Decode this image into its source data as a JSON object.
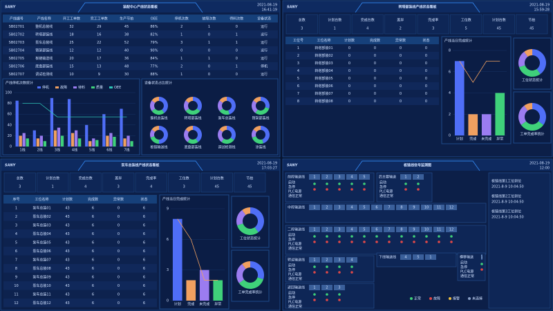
{
  "dashboards": [
    {
      "logo": "SANY",
      "title": "装配中心产线状态看板",
      "date": "2021-08-19",
      "time": "16:41:19",
      "table": {
        "headers": [
          "产线编号",
          "产线名称",
          "开工工单数",
          "完工工单数",
          "生产节拍",
          "OEE",
          "停机次数",
          "故障次数",
          "待料次数",
          "设备状态"
        ],
        "rows": [
          [
            "SB02701",
            "整机总装线",
            32,
            29,
            45,
            "86%",
            2,
            1,
            0,
            "运行"
          ],
          [
            "SB02702",
            "转塔部装线",
            18,
            16,
            38,
            "82%",
            1,
            0,
            1,
            "运行"
          ],
          [
            "SB02703",
            "泵车总装线",
            25,
            22,
            52,
            "79%",
            3,
            1,
            1,
            "运行"
          ],
          [
            "SB02704",
            "臂架部装线",
            12,
            12,
            40,
            "90%",
            0,
            0,
            0,
            "运行"
          ],
          [
            "SB02705",
            "板链输送线",
            20,
            17,
            36,
            "84%",
            1,
            1,
            0,
            "运行"
          ],
          [
            "SB02706",
            "底盘部装线",
            15,
            13,
            48,
            "77%",
            2,
            0,
            1,
            "停机"
          ],
          [
            "SB02707",
            "调试检测线",
            10,
            9,
            30,
            "88%",
            1,
            0,
            0,
            "运行"
          ]
        ]
      },
      "chart": {
        "title": "产线停机次数统计",
        "categories": [
          "1线",
          "2线",
          "3线",
          "4线",
          "5线",
          "6线",
          "7线"
        ],
        "series": [
          {
            "name": "停机",
            "color": "#4f6ef7",
            "values": [
              85,
              30,
              90,
              88,
              40,
              60,
              70
            ]
          },
          {
            "name": "故障",
            "color": "#f0a060",
            "values": [
              20,
              15,
              30,
              25,
              10,
              20,
              15
            ]
          },
          {
            "name": "待料",
            "color": "#9b7cf0",
            "values": [
              25,
              20,
              35,
              30,
              15,
              25,
              20
            ]
          },
          {
            "name": "质量",
            "color": "#3fd17a",
            "values": [
              15,
              10,
              20,
              15,
              12,
              18,
              10
            ]
          }
        ],
        "line": {
          "name": "OEE",
          "color": "#2ec4b6",
          "values": [
            80,
            80,
            55,
            55,
            55,
            55,
            55
          ]
        },
        "ylim": [
          0,
          100
        ],
        "yticks": [
          0,
          20,
          40,
          60,
          80,
          100
        ]
      },
      "donuts_title": "设备状态占比统计",
      "donut_colors": [
        "#4f6ef7",
        "#3fd17a",
        "#9b7cf0",
        "#f0a060"
      ],
      "donuts": [
        {
          "name": "整机总装线",
          "values": [
            40,
            25,
            20,
            15
          ]
        },
        {
          "name": "转塔部装线",
          "values": [
            35,
            30,
            20,
            15
          ]
        },
        {
          "name": "泵车总装线",
          "values": [
            45,
            20,
            20,
            15
          ]
        },
        {
          "name": "臂架部装线",
          "values": [
            30,
            30,
            25,
            15
          ]
        },
        {
          "name": "板链输送线",
          "values": [
            50,
            20,
            15,
            15
          ]
        },
        {
          "name": "底盘部装线",
          "values": [
            40,
            20,
            25,
            15
          ]
        },
        {
          "name": "调试检测线",
          "values": [
            35,
            25,
            25,
            15
          ]
        },
        {
          "name": "涂装线",
          "values": [
            45,
            25,
            15,
            15
          ]
        }
      ]
    },
    {
      "logo": "SANY",
      "title": "转塔部装线产线状态看板",
      "date": "2021-08-19",
      "time": "15:59:28",
      "summary": [
        {
          "label": "总数",
          "value": 3
        },
        {
          "label": "计划台数",
          "value": 1
        },
        {
          "label": "完成台数",
          "value": 4
        },
        {
          "label": "差异",
          "value": 2
        },
        {
          "label": "完成率",
          "value": 3
        },
        {
          "label": "工位数",
          "value": 5
        },
        {
          "label": "计划台数",
          "value": 45
        },
        {
          "label": "节拍",
          "value": 45
        }
      ],
      "table": {
        "headers": [
          "工位号",
          "工位名称",
          "计划数",
          "完成数",
          "异常数",
          "状态"
        ],
        "rows": [
          [
            1,
            "转塔部装01",
            0,
            0,
            0,
            0
          ],
          [
            2,
            "转塔部装02",
            0,
            0,
            0,
            0
          ],
          [
            3,
            "转塔部装03",
            0,
            0,
            0,
            0
          ],
          [
            4,
            "转塔部装04",
            0,
            0,
            0,
            0
          ],
          [
            5,
            "转塔部装05",
            0,
            0,
            0,
            0
          ],
          [
            6,
            "转塔部装06",
            0,
            0,
            0,
            0
          ],
          [
            7,
            "转塔部装07",
            0,
            0,
            0,
            0
          ],
          [
            8,
            "转塔部装08",
            0,
            0,
            0,
            0
          ]
        ]
      },
      "chart": {
        "title": "产线当日完成统计",
        "categories": [
          "计划",
          "完成",
          "未完成",
          "异常"
        ],
        "values": [
          7,
          2,
          2,
          4
        ],
        "colors": [
          "#4f6ef7",
          "#f0a060",
          "#9b7cf0",
          "#3fd17a"
        ],
        "line": {
          "color": "#f0a060",
          "values": [
            7,
            5,
            7,
            7
          ]
        },
        "ylim": [
          0,
          8
        ],
        "yticks": [
          0,
          2,
          4,
          6,
          8
        ]
      },
      "donut_colors": [
        "#4f6ef7",
        "#3fd17a",
        "#9b7cf0",
        "#f0a060"
      ],
      "donuts": [
        {
          "name": "工位状态统计",
          "values": [
            40,
            30,
            20,
            10
          ]
        },
        {
          "name": "工单完成率统计",
          "values": [
            35,
            30,
            25,
            10
          ]
        }
      ]
    },
    {
      "logo": "SANY",
      "title": "泵车总装线产线状态看板",
      "date": "2021-08-19",
      "time": "17:03:27",
      "summary": [
        {
          "label": "总数",
          "value": 3
        },
        {
          "label": "计划台数",
          "value": 1
        },
        {
          "label": "完成台数",
          "value": 4
        },
        {
          "label": "差异",
          "value": 3
        },
        {
          "label": "完成率",
          "value": 4
        },
        {
          "label": "工位数",
          "value": 3
        },
        {
          "label": "计划台数",
          "value": 45
        },
        {
          "label": "节拍",
          "value": 45
        }
      ],
      "table": {
        "headers": [
          "序号",
          "工位名称",
          "计划数",
          "完成数",
          "异常数",
          "状态"
        ],
        "rows": [
          [
            1,
            "泵车总装01",
            43,
            6,
            0,
            6
          ],
          [
            2,
            "泵车总装02",
            43,
            6,
            0,
            6
          ],
          [
            3,
            "泵车总装03",
            43,
            6,
            0,
            6
          ],
          [
            4,
            "泵车总装04",
            43,
            6,
            0,
            6
          ],
          [
            5,
            "泵车总装05",
            43,
            6,
            0,
            6
          ],
          [
            6,
            "泵车总装06",
            43,
            6,
            0,
            6
          ],
          [
            7,
            "泵车总装07",
            43,
            6,
            0,
            6
          ],
          [
            8,
            "泵车总装08",
            43,
            6,
            0,
            6
          ],
          [
            9,
            "泵车总装09",
            43,
            6,
            0,
            6
          ],
          [
            10,
            "泵车总装10",
            43,
            6,
            0,
            6
          ],
          [
            11,
            "泵车总装11",
            43,
            6,
            0,
            6
          ],
          [
            12,
            "泵车总装12",
            43,
            6,
            0,
            6
          ]
        ]
      },
      "chart": {
        "title": "产线当日完成统计",
        "categories": [
          "计划",
          "完成",
          "未完成",
          "异常"
        ],
        "values": [
          8,
          2,
          3,
          2
        ],
        "colors": [
          "#4f6ef7",
          "#f0a060",
          "#9b7cf0",
          "#3fd17a"
        ],
        "line": {
          "color": "#f0a060",
          "values": [
            8,
            6,
            2,
            2
          ]
        },
        "ylim": [
          0,
          9
        ],
        "yticks": [
          0,
          3,
          6,
          9
        ]
      },
      "donut_colors": [
        "#4f6ef7",
        "#3fd17a",
        "#9b7cf0",
        "#f0a060"
      ],
      "donuts": [
        {
          "name": "工位状态统计",
          "values": [
            40,
            30,
            20,
            10
          ]
        },
        {
          "name": "工单完成率统计",
          "values": [
            30,
            35,
            25,
            10
          ]
        }
      ]
    }
  ],
  "signal_board": {
    "logo": "SANY",
    "title": "板链线信号监测图",
    "date": "2021-08-19",
    "time": "12:00",
    "signals": [
      "启动",
      "急停",
      "PLC电源",
      "通信正常"
    ],
    "groups": [
      {
        "name": "前段输送线",
        "slots": [
          1,
          2,
          3,
          4,
          5
        ]
      },
      {
        "name": "后主要输送",
        "slots": [
          1,
          2
        ]
      },
      {
        "name": "中段输送线",
        "slots": [
          1,
          2,
          3,
          4,
          5,
          6,
          7,
          8,
          9,
          10,
          11,
          12
        ]
      },
      {
        "name": "二段输送线",
        "slots": [
          1,
          2,
          3,
          4,
          5,
          6,
          7,
          8,
          9,
          10,
          11,
          12
        ]
      },
      {
        "name": "转运输送线",
        "slots": [
          1,
          2,
          3,
          4
        ]
      },
      {
        "name": "下线输送线",
        "slots": [
          4,
          5,
          1
        ]
      },
      {
        "name": "横移输送",
        "slots": [
          1
        ]
      },
      {
        "name": "返回输送线",
        "slots": [
          1,
          2,
          3
        ]
      }
    ],
    "legend": [
      {
        "label": "正常",
        "color": "#3fd17a"
      },
      {
        "label": "故障",
        "color": "#e04848"
      },
      {
        "label": "报警",
        "color": "#f0c040"
      },
      {
        "label": "未连接",
        "color": "#8aa0c8"
      }
    ],
    "log": [
      {
        "text": "板链线第1工位到位",
        "time": "2021-8-9 10:04:50"
      },
      {
        "text": "板链线第2工位到位",
        "time": "2021-8-9 10:04:50"
      },
      {
        "text": "板链线第3工位到位",
        "time": "2021-8-9 10:04:50"
      }
    ]
  }
}
